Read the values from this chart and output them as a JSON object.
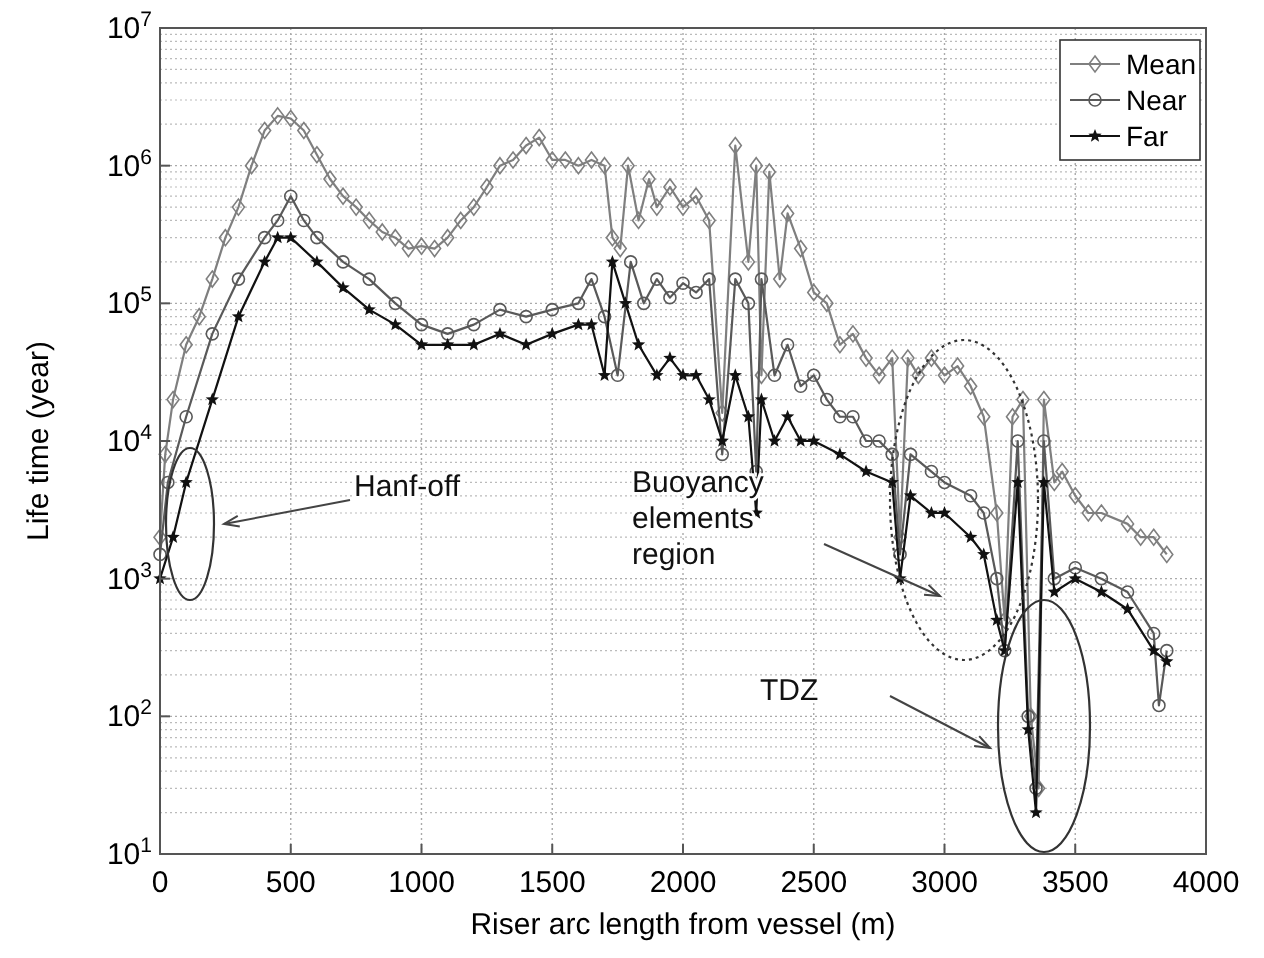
{
  "chart_data": {
    "type": "line",
    "xlabel": "Riser arc length from vessel (m)",
    "ylabel": "Life time (year)",
    "log": "y",
    "grid": true,
    "legend": "top right",
    "xlim": [
      0,
      4000
    ],
    "xticks": [
      0,
      500,
      1000,
      1500,
      2000,
      2500,
      3000,
      3500,
      4000
    ],
    "ylim": [
      10,
      10000000
    ],
    "yticks": [
      {
        "value": 10,
        "label": "10$^{1}$"
      },
      {
        "value": 100,
        "label": "10$^{2}$"
      },
      {
        "value": 1000,
        "label": "10$^{3}$"
      },
      {
        "value": 10000,
        "label": "10$^{4}$"
      },
      {
        "value": 100000,
        "label": "10$^{5}$"
      },
      {
        "value": 1000000,
        "label": "10$^{6}$"
      },
      {
        "value": 10000000,
        "label": "10$^{7}$"
      }
    ],
    "series": [
      {
        "name": "Mean",
        "color": "#7f7f7f",
        "marker": "diamond",
        "x": [
          0,
          20,
          50,
          100,
          150,
          200,
          250,
          300,
          350,
          400,
          450,
          500,
          550,
          600,
          650,
          700,
          750,
          800,
          850,
          900,
          950,
          1000,
          1050,
          1100,
          1150,
          1200,
          1250,
          1300,
          1350,
          1400,
          1450,
          1500,
          1550,
          1600,
          1650,
          1700,
          1730,
          1760,
          1790,
          1830,
          1870,
          1900,
          1950,
          2000,
          2050,
          2100,
          2150,
          2200,
          2250,
          2280,
          2300,
          2330,
          2370,
          2400,
          2450,
          2500,
          2550,
          2600,
          2650,
          2700,
          2750,
          2800,
          2830,
          2860,
          2900,
          2950,
          3000,
          3050,
          3100,
          3150,
          3200,
          3230,
          3260,
          3300,
          3330,
          3360,
          3380,
          3420,
          3450,
          3500,
          3550,
          3600,
          3700,
          3750,
          3800,
          3850
        ],
        "values": [
          2000,
          8000,
          20000,
          50000,
          80000,
          150000,
          300000,
          500000,
          1000000,
          1800000,
          2300000,
          2200000,
          1800000,
          1200000,
          800000,
          600000,
          500000,
          400000,
          330000,
          300000,
          250000,
          260000,
          250000,
          300000,
          400000,
          500000,
          700000,
          1000000,
          1100000,
          1400000,
          1600000,
          1100000,
          1100000,
          1000000,
          1100000,
          1000000,
          300000,
          250000,
          1000000,
          400000,
          800000,
          500000,
          700000,
          500000,
          600000,
          400000,
          16000,
          1400000,
          200000,
          1000000,
          30000,
          900000,
          150000,
          450000,
          250000,
          120000,
          100000,
          50000,
          60000,
          40000,
          30000,
          40000,
          2000,
          40000,
          30000,
          40000,
          30000,
          35000,
          25000,
          15000,
          3000,
          500,
          15000,
          20000,
          100,
          30,
          20000,
          5000,
          6000,
          4000,
          3000,
          3000,
          2500,
          2000,
          2000,
          1500
        ]
      },
      {
        "name": "Near",
        "color": "#595959",
        "marker": "circle",
        "x": [
          0,
          30,
          100,
          200,
          300,
          400,
          450,
          500,
          550,
          600,
          700,
          800,
          900,
          1000,
          1100,
          1200,
          1300,
          1400,
          1500,
          1600,
          1650,
          1700,
          1750,
          1800,
          1850,
          1900,
          1950,
          2000,
          2050,
          2100,
          2150,
          2200,
          2250,
          2280,
          2300,
          2350,
          2400,
          2450,
          2500,
          2550,
          2600,
          2650,
          2700,
          2750,
          2800,
          2830,
          2870,
          2950,
          3000,
          3100,
          3150,
          3200,
          3230,
          3280,
          3320,
          3350,
          3380,
          3420,
          3500,
          3600,
          3700,
          3800,
          3820,
          3850
        ],
        "values": [
          1500,
          5000,
          15000,
          60000,
          150000,
          300000,
          400000,
          600000,
          400000,
          300000,
          200000,
          150000,
          100000,
          70000,
          60000,
          70000,
          90000,
          80000,
          90000,
          100000,
          150000,
          80000,
          30000,
          200000,
          100000,
          150000,
          110000,
          140000,
          120000,
          150000,
          8000,
          150000,
          100000,
          6000,
          150000,
          30000,
          50000,
          25000,
          30000,
          20000,
          15000,
          15000,
          10000,
          10000,
          8000,
          1500,
          8000,
          6000,
          5000,
          4000,
          3000,
          1000,
          300,
          10000,
          100,
          30,
          10000,
          1000,
          1200,
          1000,
          800,
          400,
          120,
          300
        ]
      },
      {
        "name": "Far",
        "color": "#111111",
        "marker": "star",
        "x": [
          0,
          50,
          100,
          200,
          300,
          400,
          450,
          500,
          600,
          700,
          800,
          900,
          1000,
          1100,
          1200,
          1300,
          1400,
          1500,
          1600,
          1650,
          1700,
          1730,
          1780,
          1830,
          1900,
          1950,
          2000,
          2050,
          2100,
          2150,
          2200,
          2250,
          2280,
          2300,
          2350,
          2400,
          2450,
          2500,
          2600,
          2700,
          2800,
          2830,
          2870,
          2950,
          3000,
          3100,
          3150,
          3200,
          3230,
          3280,
          3320,
          3350,
          3380,
          3420,
          3500,
          3600,
          3700,
          3800,
          3850
        ],
        "values": [
          1000,
          2000,
          5000,
          20000,
          80000,
          200000,
          300000,
          300000,
          200000,
          130000,
          90000,
          70000,
          50000,
          50000,
          50000,
          60000,
          50000,
          60000,
          70000,
          70000,
          30000,
          200000,
          100000,
          50000,
          30000,
          40000,
          30000,
          30000,
          20000,
          10000,
          30000,
          15000,
          3000,
          20000,
          10000,
          15000,
          10000,
          10000,
          8000,
          6000,
          5000,
          1000,
          4000,
          3000,
          3000,
          2000,
          1500,
          500,
          300,
          5000,
          80,
          20,
          5000,
          800,
          1000,
          800,
          600,
          300,
          250
        ]
      }
    ],
    "annotations": [
      "Hanf-off",
      "Buoyancy elements region",
      "TDZ"
    ]
  }
}
